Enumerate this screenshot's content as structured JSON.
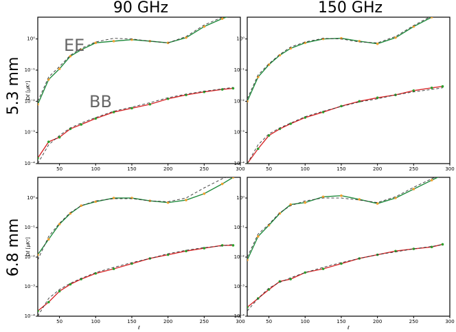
{
  "column_titles": [
    "90 GHz",
    "150 GHz"
  ],
  "row_titles": [
    "5.3 mm",
    "6.8 mm"
  ],
  "chart_data": [
    {
      "type": "line",
      "log_y": true,
      "ylabel": "Dℓ [μK²]",
      "annotations": [
        "EE",
        "BB"
      ],
      "x": [
        20,
        35,
        50,
        65,
        80,
        100,
        125,
        150,
        175,
        200,
        225,
        250,
        275,
        290
      ],
      "xlim": [
        20,
        300
      ],
      "xticks": [
        50,
        100,
        150,
        200,
        250,
        300
      ],
      "ylim": [
        0.0001,
        5
      ],
      "yticks": [
        {
          "value": 0.0001,
          "label": "10⁻⁴"
        },
        {
          "value": 0.001,
          "label": "10⁻³"
        },
        {
          "value": 0.01,
          "label": "10⁻²"
        },
        {
          "value": 0.1,
          "label": "10⁻¹"
        },
        {
          "value": 1,
          "label": "10⁰"
        }
      ],
      "series": [
        {
          "color": "#1f8a3c",
          "style": "solid",
          "marker_color": "#f0a030",
          "values": [
            0.008,
            0.05,
            0.11,
            0.28,
            0.45,
            0.75,
            0.85,
            0.95,
            0.85,
            0.75,
            1.1,
            2.5,
            4.5,
            6
          ]
        },
        {
          "color": "#333333",
          "style": "dashed",
          "values": [
            0.01,
            0.06,
            0.13,
            0.3,
            0.5,
            0.8,
            1.05,
            1.0,
            0.85,
            0.75,
            1.2,
            2.8,
            5,
            7
          ]
        },
        {
          "color": "#d62728",
          "style": "solid",
          "marker_color": "#2ca02c",
          "values": [
            0.00015,
            0.0005,
            0.0007,
            0.0013,
            0.0018,
            0.0028,
            0.0045,
            0.006,
            0.008,
            0.012,
            0.016,
            0.02,
            0.024,
            0.026
          ]
        },
        {
          "color": "#333333",
          "style": "dashed",
          "values": [
            0.0001,
            0.0004,
            0.0008,
            0.0014,
            0.002,
            0.003,
            0.0048,
            0.0065,
            0.009,
            0.013,
            0.017,
            0.021,
            0.025,
            0.028
          ]
        }
      ]
    },
    {
      "type": "line",
      "log_y": true,
      "x": [
        20,
        35,
        50,
        65,
        80,
        100,
        125,
        150,
        175,
        200,
        225,
        250,
        275,
        290
      ],
      "xlim": [
        20,
        300
      ],
      "xticks": [
        50,
        100,
        150,
        200,
        250,
        300
      ],
      "ylim": [
        0.0001,
        5
      ],
      "yticks": [
        {
          "value": 0.0001,
          "label": "10⁻⁴"
        },
        {
          "value": 0.001,
          "label": "10⁻³"
        },
        {
          "value": 0.01,
          "label": "10⁻²"
        },
        {
          "value": 0.1,
          "label": "10⁻¹"
        },
        {
          "value": 1,
          "label": "10⁰"
        }
      ],
      "series": [
        {
          "color": "#1f8a3c",
          "style": "solid",
          "marker_color": "#f0a030",
          "values": [
            0.01,
            0.06,
            0.15,
            0.3,
            0.5,
            0.75,
            1.0,
            1.05,
            0.85,
            0.7,
            1.1,
            2.5,
            5,
            7
          ]
        },
        {
          "color": "#333333",
          "style": "dashed",
          "values": [
            0.012,
            0.07,
            0.16,
            0.32,
            0.55,
            0.8,
            1.05,
            1.0,
            0.8,
            0.75,
            1.2,
            2.7,
            5.5,
            7.5
          ]
        },
        {
          "color": "#d62728",
          "style": "solid",
          "marker_color": "#2ca02c",
          "values": [
            0.0001,
            0.0003,
            0.0008,
            0.0013,
            0.0019,
            0.003,
            0.0045,
            0.007,
            0.01,
            0.013,
            0.016,
            0.022,
            0.027,
            0.03
          ]
        },
        {
          "color": "#333333",
          "style": "dashed",
          "values": [
            0.0001,
            0.0004,
            0.0009,
            0.0014,
            0.002,
            0.0032,
            0.0048,
            0.0068,
            0.0095,
            0.012,
            0.016,
            0.02,
            0.024,
            0.027
          ]
        }
      ]
    },
    {
      "type": "line",
      "log_y": true,
      "ylabel": "Dℓ [μK²]",
      "xlabel": "ℓ",
      "x": [
        20,
        35,
        50,
        65,
        80,
        100,
        125,
        150,
        175,
        200,
        225,
        250,
        275,
        290
      ],
      "xlim": [
        20,
        300
      ],
      "xticks": [
        50,
        100,
        150,
        200,
        250,
        300
      ],
      "ylim": [
        0.0001,
        5
      ],
      "yticks": [
        {
          "value": 0.0001,
          "label": "10⁻⁴"
        },
        {
          "value": 0.001,
          "label": "10⁻³"
        },
        {
          "value": 0.01,
          "label": "10⁻²"
        },
        {
          "value": 0.1,
          "label": "10⁻¹"
        },
        {
          "value": 1,
          "label": "10⁰"
        }
      ],
      "series": [
        {
          "color": "#1f8a3c",
          "style": "solid",
          "marker_color": "#f0a030",
          "values": [
            0.012,
            0.04,
            0.13,
            0.3,
            0.55,
            0.75,
            1.0,
            1.0,
            0.8,
            0.7,
            0.85,
            1.4,
            3,
            5
          ]
        },
        {
          "color": "#333333",
          "style": "dashed",
          "values": [
            0.008,
            0.05,
            0.14,
            0.32,
            0.55,
            0.8,
            0.95,
            0.95,
            0.8,
            0.75,
            1.0,
            2.2,
            4.5,
            6
          ]
        },
        {
          "color": "#d62728",
          "style": "solid",
          "marker_color": "#2ca02c",
          "values": [
            0.00015,
            0.0003,
            0.0007,
            0.0012,
            0.0018,
            0.0028,
            0.004,
            0.006,
            0.009,
            0.012,
            0.016,
            0.02,
            0.025,
            0.025
          ]
        },
        {
          "color": "#333333",
          "style": "dashed",
          "values": [
            0.0001,
            0.0004,
            0.0008,
            0.0013,
            0.0019,
            0.003,
            0.0045,
            0.0065,
            0.009,
            0.013,
            0.017,
            0.021,
            0.024,
            0.027
          ]
        }
      ]
    },
    {
      "type": "line",
      "log_y": true,
      "xlabel": "ℓ",
      "x": [
        20,
        35,
        50,
        65,
        80,
        100,
        125,
        150,
        175,
        200,
        225,
        250,
        275,
        290
      ],
      "xlim": [
        20,
        300
      ],
      "xticks": [
        50,
        100,
        150,
        200,
        250,
        300
      ],
      "ylim": [
        0.0001,
        5
      ],
      "yticks": [
        {
          "value": 0.0001,
          "label": "10⁻⁴"
        },
        {
          "value": 0.001,
          "label": "10⁻³"
        },
        {
          "value": 0.01,
          "label": "10⁻²"
        },
        {
          "value": 0.1,
          "label": "10⁻¹"
        },
        {
          "value": 1,
          "label": "10⁰"
        }
      ],
      "series": [
        {
          "color": "#1f8a3c",
          "style": "solid",
          "marker_color": "#f0a030",
          "values": [
            0.008,
            0.05,
            0.12,
            0.3,
            0.6,
            0.7,
            1.1,
            1.2,
            0.9,
            0.65,
            1.0,
            2,
            4,
            6
          ]
        },
        {
          "color": "#333333",
          "style": "dashed",
          "values": [
            0.01,
            0.06,
            0.13,
            0.32,
            0.55,
            0.8,
            1.0,
            1.0,
            0.85,
            0.7,
            1.1,
            2.3,
            4.5,
            6.5
          ]
        },
        {
          "color": "#d62728",
          "style": "solid",
          "marker_color": "#2ca02c",
          "values": [
            0.0002,
            0.0004,
            0.0008,
            0.0015,
            0.0018,
            0.003,
            0.004,
            0.006,
            0.009,
            0.012,
            0.016,
            0.019,
            0.022,
            0.027
          ]
        },
        {
          "color": "#333333",
          "style": "dashed",
          "values": [
            0.00015,
            0.0004,
            0.0009,
            0.0014,
            0.002,
            0.003,
            0.0045,
            0.0065,
            0.009,
            0.012,
            0.015,
            0.019,
            0.023,
            0.026
          ]
        }
      ]
    }
  ]
}
